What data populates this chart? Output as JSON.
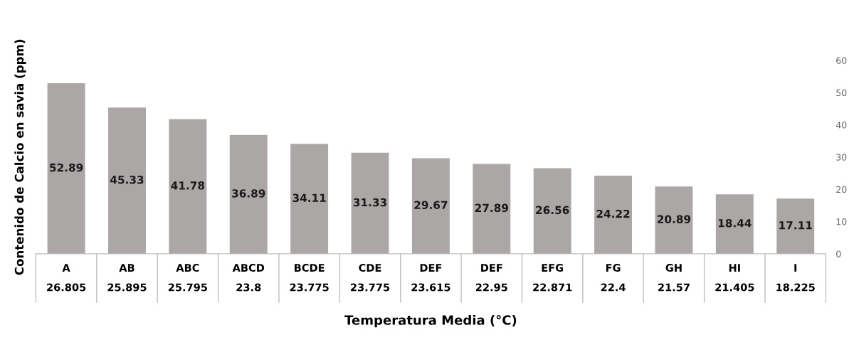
{
  "chart_data": {
    "type": "bar",
    "categories": [
      "A\n26.805",
      "AB\n25.895",
      "ABC\n25.795",
      "ABCD\n23.8",
      "BCDE\n23.775",
      "CDE\n23.775",
      "DEF\n23.615",
      "DEF\n22.95",
      "EFG\n22.871",
      "FG\n22.4",
      "GH\n21.57",
      "HI\n21.405",
      "I\n18.225"
    ],
    "values": [
      52.89,
      45.33,
      41.78,
      36.89,
      34.11,
      31.33,
      29.67,
      27.89,
      26.56,
      24.22,
      20.89,
      18.44,
      17.11
    ],
    "color": "#aba7a6",
    "data_labels": true,
    "ylim": [
      0,
      60
    ],
    "yticks": [
      0,
      10,
      20,
      30,
      40,
      50,
      60
    ],
    "ylabel": "Contenido de Calcio en savia (ppm)",
    "xlabel": "Temperatura Media (°C)",
    "grid": false
  }
}
